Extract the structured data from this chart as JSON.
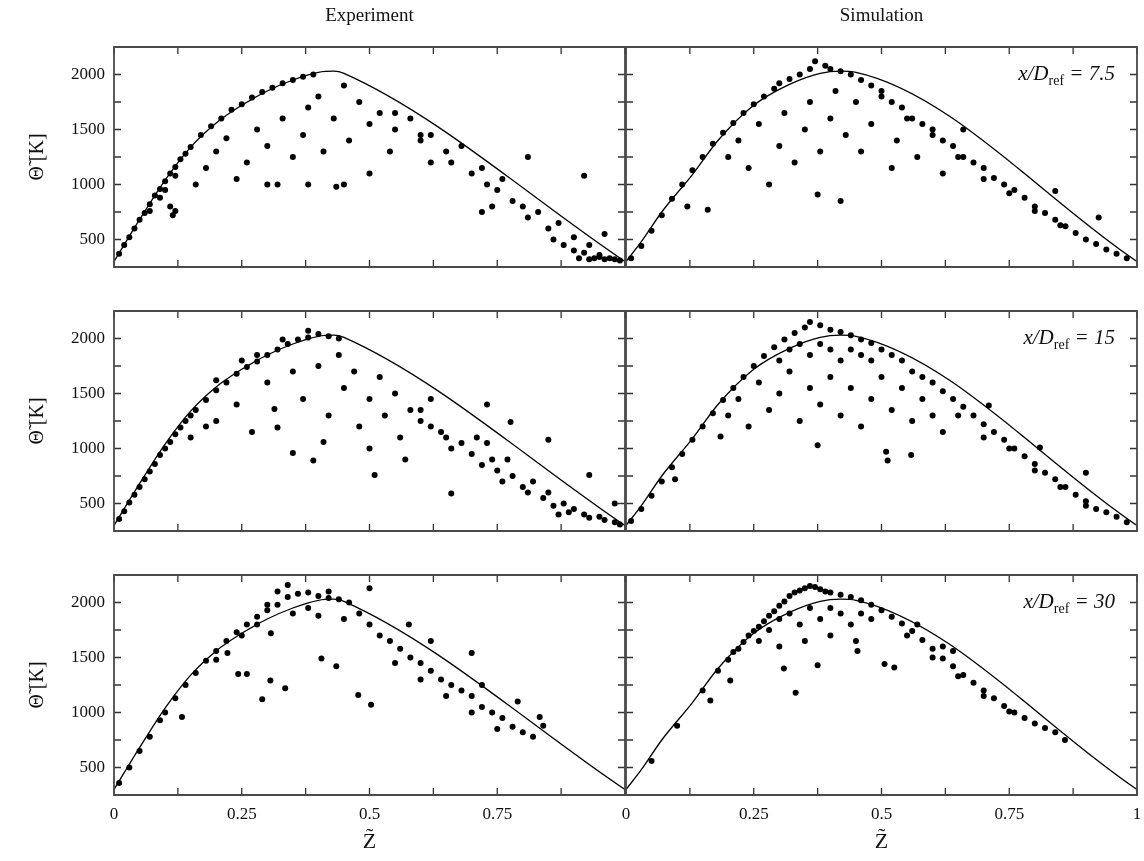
{
  "chart_data": [
    {
      "type": "scatter",
      "title": "Experiment",
      "ylabel": "Θ̃ [K]",
      "xlim": [
        0,
        1
      ],
      "ylim": [
        250,
        2250
      ],
      "xticks": [
        0,
        {
          "value": 0.125,
          "label": null
        },
        0.25,
        {
          "value": 0.375,
          "label": null
        },
        0.5,
        {
          "value": 0.625,
          "label": null
        },
        0.75,
        {
          "value": 0.875,
          "label": null
        },
        {
          "value": 1,
          "label": null
        }
      ],
      "yticks": [
        500,
        {
          "value": 750,
          "label": null
        },
        1000,
        {
          "value": 1250,
          "label": null
        },
        1500,
        {
          "value": 1750,
          "label": null
        },
        2000
      ],
      "tick_labels": "y",
      "marker": "circle",
      "series": [
        {
          "type": "scatter",
          "color": "#000000",
          "x": [
            0.01,
            0.02,
            0.03,
            0.04,
            0.05,
            0.06,
            0.07,
            0.08,
            0.09,
            0.1,
            0.11,
            0.12,
            0.13,
            0.14,
            0.15,
            0.17,
            0.19,
            0.21,
            0.23,
            0.25,
            0.27,
            0.29,
            0.31,
            0.33,
            0.35,
            0.37,
            0.39,
            0.07,
            0.09,
            0.1,
            0.12,
            0.11,
            0.115,
            0.12,
            0.16,
            0.18,
            0.2,
            0.22,
            0.24,
            0.26,
            0.28,
            0.3,
            0.32,
            0.33,
            0.35,
            0.37,
            0.38,
            0.4,
            0.41,
            0.43,
            0.45,
            0.46,
            0.48,
            0.5,
            0.5,
            0.52,
            0.54,
            0.55,
            0.58,
            0.6,
            0.62,
            0.45,
            0.3,
            0.38,
            0.435,
            0.55,
            0.6,
            0.62,
            0.65,
            0.66,
            0.68,
            0.7,
            0.72,
            0.73,
            0.75,
            0.76,
            0.78,
            0.8,
            0.81,
            0.83,
            0.85,
            0.86,
            0.87,
            0.88,
            0.9,
            0.9,
            0.92,
            0.93,
            0.94,
            0.95,
            0.96,
            0.97,
            0.98,
            0.99,
            0.93,
            0.95,
            0.91,
            0.81,
            0.92,
            0.96,
            0.72,
            0.74
          ],
          "values": [
            370,
            450,
            520,
            600,
            680,
            740,
            820,
            900,
            960,
            1030,
            1100,
            1160,
            1230,
            1280,
            1340,
            1450,
            1530,
            1600,
            1680,
            1730,
            1790,
            1840,
            1880,
            1920,
            1950,
            1980,
            2000,
            760,
            880,
            950,
            1080,
            800,
            720,
            760,
            1000,
            1150,
            1300,
            1420,
            1050,
            1200,
            1500,
            1350,
            1000,
            1600,
            1250,
            1450,
            1700,
            1800,
            1300,
            1600,
            1900,
            1400,
            1750,
            1100,
            1550,
            1650,
            1300,
            1500,
            1600,
            1450,
            1200,
            1000,
            1000,
            1000,
            980,
            1650,
            1400,
            1450,
            1300,
            1200,
            1350,
            1100,
            1150,
            1000,
            950,
            1050,
            850,
            800,
            700,
            750,
            600,
            500,
            650,
            450,
            520,
            400,
            380,
            450,
            330,
            340,
            320,
            330,
            320,
            310,
            320,
            360,
            330,
            1250,
            1080,
            550,
            750,
            800
          ]
        },
        {
          "type": "line",
          "color": "#000000",
          "marker": "none",
          "x": [
            0,
            0.05,
            0.1,
            0.15,
            0.2,
            0.25,
            0.3,
            0.35,
            0.4,
            0.43,
            0.45,
            1
          ],
          "values": [
            300,
            680,
            1040,
            1340,
            1560,
            1720,
            1850,
            1950,
            2020,
            2030,
            2010,
            300
          ]
        }
      ]
    },
    {
      "type": "scatter",
      "title": "Simulation",
      "xlim": [
        0,
        1
      ],
      "ylim": [
        250,
        2250
      ],
      "xticks": [
        0,
        {
          "value": 0.125,
          "label": null
        },
        0.25,
        {
          "value": 0.375,
          "label": null
        },
        0.5,
        {
          "value": 0.625,
          "label": null
        },
        0.75,
        {
          "value": 0.875,
          "label": null
        },
        1
      ],
      "yticks": [
        500,
        {
          "value": 750,
          "label": null
        },
        1000,
        {
          "value": 1250,
          "label": null
        },
        1500,
        {
          "value": 1750,
          "label": null
        },
        2000
      ],
      "tick_labels": false,
      "marker": "circle",
      "annotations": [
        "x/D$_{ref}$ = 7.5"
      ],
      "series": [
        {
          "type": "scatter",
          "color": "#000000",
          "x": [
            0.01,
            0.03,
            0.05,
            0.07,
            0.09,
            0.11,
            0.13,
            0.15,
            0.17,
            0.19,
            0.21,
            0.23,
            0.25,
            0.27,
            0.29,
            0.3,
            0.32,
            0.34,
            0.36,
            0.37,
            0.39,
            0.4,
            0.42,
            0.44,
            0.12,
            0.16,
            0.2,
            0.22,
            0.24,
            0.26,
            0.28,
            0.3,
            0.31,
            0.33,
            0.35,
            0.36,
            0.375,
            0.38,
            0.4,
            0.41,
            0.42,
            0.43,
            0.45,
            0.46,
            0.48,
            0.5,
            0.52,
            0.53,
            0.55,
            0.57,
            0.6,
            0.62,
            0.65,
            0.46,
            0.48,
            0.5,
            0.52,
            0.54,
            0.56,
            0.58,
            0.6,
            0.62,
            0.64,
            0.66,
            0.68,
            0.7,
            0.72,
            0.74,
            0.76,
            0.78,
            0.8,
            0.82,
            0.84,
            0.86,
            0.88,
            0.9,
            0.92,
            0.94,
            0.96,
            0.98,
            0.7,
            0.75,
            0.8,
            0.85,
            0.66,
            0.84,
            0.925
          ],
          "values": [
            330,
            440,
            580,
            720,
            870,
            1000,
            1130,
            1250,
            1370,
            1470,
            1560,
            1650,
            1730,
            1800,
            1870,
            1920,
            1960,
            2000,
            2050,
            2120,
            2080,
            2050,
            2030,
            2000,
            800,
            770,
            1250,
            1400,
            1150,
            1550,
            1000,
            1350,
            1650,
            1200,
            1500,
            1750,
            910,
            1300,
            1600,
            1850,
            850,
            1450,
            1750,
            1300,
            1550,
            1800,
            1150,
            1400,
            1600,
            1250,
            1500,
            1100,
            1250,
            1950,
            1900,
            1850,
            1750,
            1700,
            1600,
            1550,
            1450,
            1400,
            1350,
            1250,
            1200,
            1150,
            1060,
            1000,
            950,
            880,
            800,
            740,
            680,
            620,
            560,
            500,
            460,
            410,
            370,
            330,
            1050,
            920,
            760,
            630,
            1500,
            940,
            700
          ]
        },
        {
          "type": "line",
          "color": "#000000",
          "marker": "none",
          "x": [
            0,
            0.03,
            0.07,
            0.13,
            0.18,
            0.25,
            0.32,
            0.38,
            0.42,
            0.45,
            1
          ],
          "values": [
            300,
            480,
            750,
            1090,
            1400,
            1720,
            1910,
            2010,
            2030,
            2020,
            300
          ]
        }
      ]
    },
    {
      "type": "scatter",
      "ylabel": "Θ̃ [K]",
      "xlim": [
        0,
        1
      ],
      "ylim": [
        250,
        2250
      ],
      "xticks": [
        0,
        {
          "value": 0.125,
          "label": null
        },
        0.25,
        {
          "value": 0.375,
          "label": null
        },
        0.5,
        {
          "value": 0.625,
          "label": null
        },
        0.75,
        {
          "value": 0.875,
          "label": null
        },
        {
          "value": 1,
          "label": null
        }
      ],
      "yticks": [
        500,
        {
          "value": 750,
          "label": null
        },
        1000,
        {
          "value": 1250,
          "label": null
        },
        1500,
        {
          "value": 1750,
          "label": null
        },
        2000
      ],
      "tick_labels": "y",
      "marker": "circle",
      "series": [
        {
          "type": "scatter",
          "color": "#000000",
          "x": [
            0.01,
            0.02,
            0.03,
            0.04,
            0.05,
            0.06,
            0.07,
            0.08,
            0.09,
            0.1,
            0.11,
            0.12,
            0.13,
            0.14,
            0.15,
            0.16,
            0.18,
            0.2,
            0.22,
            0.24,
            0.26,
            0.28,
            0.3,
            0.32,
            0.34,
            0.36,
            0.38,
            0.4,
            0.42,
            0.44,
            0.2,
            0.25,
            0.28,
            0.33,
            0.38,
            0.15,
            0.18,
            0.2,
            0.32,
            0.314,
            0.39,
            0.41,
            0.35,
            0.24,
            0.27,
            0.3,
            0.35,
            0.37,
            0.4,
            0.42,
            0.44,
            0.45,
            0.47,
            0.48,
            0.5,
            0.52,
            0.53,
            0.55,
            0.56,
            0.58,
            0.6,
            0.62,
            0.65,
            0.5,
            0.57,
            0.51,
            0.66,
            0.6,
            0.62,
            0.64,
            0.66,
            0.68,
            0.7,
            0.71,
            0.72,
            0.74,
            0.75,
            0.76,
            0.78,
            0.8,
            0.81,
            0.82,
            0.84,
            0.85,
            0.86,
            0.88,
            0.89,
            0.9,
            0.92,
            0.93,
            0.95,
            0.96,
            0.98,
            0.99,
            0.87,
            0.77,
            0.73,
            0.73,
            0.776,
            0.85,
            0.93,
            0.98
          ],
          "values": [
            360,
            430,
            510,
            580,
            650,
            720,
            790,
            860,
            940,
            1000,
            1060,
            1130,
            1190,
            1250,
            1300,
            1350,
            1440,
            1530,
            1600,
            1680,
            1740,
            1790,
            1850,
            1900,
            1950,
            1990,
            2010,
            2040,
            2020,
            2000,
            1620,
            1800,
            1850,
            1990,
            2070,
            1100,
            1200,
            1250,
            1190,
            1360,
            890,
            1060,
            960,
            1400,
            1150,
            1600,
            1700,
            1450,
            1750,
            1300,
            1850,
            1550,
            1700,
            1200,
            1450,
            1650,
            1300,
            1500,
            1100,
            1350,
            1250,
            1450,
            1100,
            1000,
            900,
            760,
            590,
            1350,
            1200,
            1150,
            1000,
            1050,
            950,
            1100,
            850,
            900,
            800,
            700,
            750,
            650,
            600,
            700,
            550,
            600,
            480,
            500,
            420,
            450,
            400,
            370,
            380,
            350,
            330,
            310,
            400,
            900,
            1050,
            1400,
            1240,
            1080,
            760,
            500
          ]
        },
        {
          "type": "line",
          "color": "#000000",
          "marker": "none",
          "x": [
            0,
            0.05,
            0.1,
            0.15,
            0.2,
            0.25,
            0.3,
            0.35,
            0.4,
            0.43,
            0.45,
            1
          ],
          "values": [
            300,
            680,
            1040,
            1340,
            1560,
            1720,
            1850,
            1950,
            2020,
            2030,
            2010,
            300
          ]
        }
      ]
    },
    {
      "type": "scatter",
      "xlim": [
        0,
        1
      ],
      "ylim": [
        250,
        2250
      ],
      "xticks": [
        0,
        {
          "value": 0.125,
          "label": null
        },
        0.25,
        {
          "value": 0.375,
          "label": null
        },
        0.5,
        {
          "value": 0.625,
          "label": null
        },
        0.75,
        {
          "value": 0.875,
          "label": null
        },
        1
      ],
      "yticks": [
        500,
        {
          "value": 750,
          "label": null
        },
        1000,
        {
          "value": 1250,
          "label": null
        },
        1500,
        {
          "value": 1750,
          "label": null
        },
        2000
      ],
      "tick_labels": false,
      "marker": "circle",
      "annotations": [
        "x/D$_{ref}$ = 15"
      ],
      "series": [
        {
          "type": "scatter",
          "color": "#000000",
          "x": [
            0.01,
            0.03,
            0.05,
            0.07,
            0.09,
            0.11,
            0.13,
            0.15,
            0.17,
            0.19,
            0.21,
            0.23,
            0.25,
            0.27,
            0.29,
            0.31,
            0.33,
            0.35,
            0.36,
            0.38,
            0.4,
            0.42,
            0.44,
            0.46,
            0.48,
            0.3,
            0.32,
            0.34,
            0.36,
            0.38,
            0.4,
            0.42,
            0.44,
            0.46,
            0.48,
            0.5,
            0.52,
            0.54,
            0.096,
            0.185,
            0.2,
            0.22,
            0.24,
            0.26,
            0.28,
            0.3,
            0.32,
            0.34,
            0.36,
            0.375,
            0.38,
            0.4,
            0.42,
            0.44,
            0.46,
            0.48,
            0.5,
            0.509,
            0.512,
            0.52,
            0.54,
            0.558,
            0.56,
            0.58,
            0.6,
            0.62,
            0.56,
            0.58,
            0.6,
            0.62,
            0.64,
            0.66,
            0.68,
            0.7,
            0.72,
            0.74,
            0.76,
            0.78,
            0.8,
            0.82,
            0.84,
            0.86,
            0.88,
            0.9,
            0.92,
            0.94,
            0.96,
            0.98,
            0.65,
            0.7,
            0.75,
            0.8,
            0.85,
            0.9,
            0.71,
            0.9,
            0.81
          ],
          "values": [
            340,
            450,
            570,
            700,
            830,
            950,
            1080,
            1200,
            1320,
            1440,
            1550,
            1650,
            1750,
            1840,
            1920,
            1990,
            2050,
            2100,
            2150,
            2120,
            2080,
            2060,
            2030,
            1990,
            1960,
            1800,
            1900,
            1950,
            1850,
            1950,
            1900,
            1800,
            1900,
            1850,
            1800,
            1900,
            1850,
            1800,
            720,
            1110,
            1300,
            1450,
            1200,
            1600,
            1350,
            1500,
            1700,
            1250,
            1550,
            1030,
            1400,
            1650,
            1300,
            1550,
            1200,
            1450,
            1650,
            970,
            890,
            1350,
            1550,
            940,
            1250,
            1450,
            1300,
            1150,
            1700,
            1650,
            1600,
            1520,
            1450,
            1380,
            1300,
            1220,
            1150,
            1080,
            1000,
            930,
            860,
            780,
            720,
            650,
            580,
            520,
            450,
            420,
            380,
            330,
            1300,
            1100,
            1000,
            800,
            650,
            480,
            1390,
            780,
            1010
          ]
        },
        {
          "type": "line",
          "color": "#000000",
          "marker": "none",
          "x": [
            0,
            0.03,
            0.07,
            0.13,
            0.18,
            0.25,
            0.32,
            0.38,
            0.42,
            0.45,
            1
          ],
          "values": [
            300,
            480,
            750,
            1090,
            1400,
            1720,
            1910,
            2010,
            2030,
            2020,
            300
          ]
        }
      ]
    },
    {
      "type": "scatter",
      "xlabel": "Z̃",
      "ylabel": "Θ̃ [K]",
      "xlim": [
        0,
        1
      ],
      "ylim": [
        250,
        2250
      ],
      "xticks": [
        0,
        {
          "value": 0.125,
          "label": null
        },
        0.25,
        {
          "value": 0.375,
          "label": null
        },
        0.5,
        {
          "value": 0.625,
          "label": null
        },
        0.75,
        {
          "value": 0.875,
          "label": null
        },
        {
          "value": 1,
          "label": null
        }
      ],
      "yticks": [
        500,
        {
          "value": 750,
          "label": null
        },
        1000,
        {
          "value": 1250,
          "label": null
        },
        1500,
        {
          "value": 1750,
          "label": null
        },
        2000
      ],
      "marker": "circle",
      "series": [
        {
          "type": "scatter",
          "color": "#000000",
          "x": [
            0.01,
            0.03,
            0.05,
            0.07,
            0.09,
            0.1,
            0.12,
            0.14,
            0.16,
            0.18,
            0.2,
            0.22,
            0.24,
            0.26,
            0.28,
            0.3,
            0.32,
            0.34,
            0.36,
            0.38,
            0.4,
            0.42,
            0.44,
            0.46,
            0.2,
            0.25,
            0.28,
            0.3,
            0.32,
            0.34,
            0.35,
            0.38,
            0.4,
            0.42,
            0.45,
            0.29,
            0.335,
            0.306,
            0.406,
            0.435,
            0.478,
            0.503,
            0.243,
            0.26,
            0.222,
            0.307,
            0.133,
            0.48,
            0.5,
            0.52,
            0.54,
            0.56,
            0.58,
            0.6,
            0.62,
            0.64,
            0.66,
            0.68,
            0.7,
            0.72,
            0.74,
            0.76,
            0.78,
            0.8,
            0.82,
            0.55,
            0.6,
            0.65,
            0.7,
            0.75,
            0.62,
            0.72,
            0.79,
            0.84,
            0.833,
            0.7,
            0.577,
            0.5
          ],
          "values": [
            360,
            500,
            650,
            780,
            930,
            1000,
            1130,
            1250,
            1360,
            1470,
            1560,
            1650,
            1730,
            1800,
            1870,
            1930,
            1980,
            2050,
            2080,
            2090,
            2060,
            2040,
            2030,
            2000,
            1480,
            1700,
            1800,
            1980,
            2100,
            2160,
            1900,
            1950,
            1880,
            2100,
            1850,
            1120,
            1220,
            1290,
            1490,
            1420,
            1160,
            1070,
            1350,
            1350,
            1540,
            1720,
            960,
            1900,
            1800,
            1700,
            1650,
            1580,
            1500,
            1450,
            1380,
            1300,
            1250,
            1200,
            1150,
            1050,
            1000,
            950,
            870,
            820,
            780,
            1450,
            1300,
            1150,
            1000,
            850,
            1650,
            1250,
            1100,
            880,
            960,
            1540,
            1800,
            2130
          ]
        },
        {
          "type": "line",
          "color": "#000000",
          "marker": "none",
          "x": [
            0,
            0.05,
            0.1,
            0.15,
            0.2,
            0.25,
            0.3,
            0.35,
            0.4,
            0.43,
            0.45,
            1
          ],
          "values": [
            300,
            680,
            1040,
            1340,
            1560,
            1720,
            1850,
            1950,
            2020,
            2030,
            2010,
            300
          ]
        }
      ]
    },
    {
      "type": "scatter",
      "xlabel": "Z̃",
      "xlim": [
        0,
        1
      ],
      "ylim": [
        250,
        2250
      ],
      "xticks": [
        0,
        {
          "value": 0.125,
          "label": null
        },
        0.25,
        {
          "value": 0.375,
          "label": null
        },
        0.5,
        {
          "value": 0.625,
          "label": null
        },
        0.75,
        {
          "value": 0.875,
          "label": null
        },
        1
      ],
      "yticks": [
        500,
        {
          "value": 750,
          "label": null
        },
        1000,
        {
          "value": 1250,
          "label": null
        },
        1500,
        {
          "value": 1750,
          "label": null
        },
        2000
      ],
      "tick_labels": "x",
      "marker": "circle",
      "annotations": [
        "x/D$_{ref}$ = 30"
      ],
      "series": [
        {
          "type": "scatter",
          "color": "#000000",
          "x": [
            0.05,
            0.1,
            0.15,
            0.18,
            0.2,
            0.21,
            0.22,
            0.23,
            0.24,
            0.25,
            0.26,
            0.27,
            0.28,
            0.29,
            0.3,
            0.31,
            0.32,
            0.33,
            0.34,
            0.35,
            0.36,
            0.37,
            0.38,
            0.39,
            0.4,
            0.42,
            0.44,
            0.46,
            0.48,
            0.26,
            0.28,
            0.3,
            0.32,
            0.34,
            0.36,
            0.38,
            0.4,
            0.42,
            0.44,
            0.46,
            0.48,
            0.3,
            0.35,
            0.4,
            0.45,
            0.5,
            0.52,
            0.54,
            0.56,
            0.58,
            0.6,
            0.62,
            0.64,
            0.66,
            0.68,
            0.7,
            0.72,
            0.74,
            0.76,
            0.78,
            0.8,
            0.82,
            0.84,
            0.55,
            0.6,
            0.65,
            0.7,
            0.75,
            0.62,
            0.57,
            0.165,
            0.204,
            0.309,
            0.332,
            0.375,
            0.453,
            0.506,
            0.525,
            0.859,
            0.64
          ],
          "values": [
            560,
            880,
            1200,
            1380,
            1480,
            1550,
            1580,
            1640,
            1700,
            1740,
            1780,
            1830,
            1880,
            1920,
            1970,
            2010,
            2060,
            2090,
            2110,
            2130,
            2150,
            2140,
            2120,
            2100,
            2090,
            2070,
            2050,
            2020,
            1980,
            1650,
            1750,
            1850,
            1900,
            1800,
            1950,
            1850,
            1950,
            1900,
            1800,
            1900,
            1850,
            1600,
            1650,
            1700,
            1650,
            1930,
            1870,
            1810,
            1740,
            1660,
            1580,
            1490,
            1420,
            1340,
            1270,
            1200,
            1130,
            1060,
            1000,
            950,
            900,
            860,
            820,
            1700,
            1500,
            1330,
            1150,
            1010,
            1600,
            1800,
            1110,
            1290,
            1400,
            1180,
            1430,
            1560,
            1440,
            1410,
            750,
            1560
          ]
        },
        {
          "type": "line",
          "color": "#000000",
          "marker": "none",
          "x": [
            0,
            0.03,
            0.07,
            0.13,
            0.18,
            0.25,
            0.32,
            0.38,
            0.42,
            0.45,
            1
          ],
          "values": [
            300,
            480,
            750,
            1090,
            1400,
            1720,
            1910,
            2010,
            2030,
            2020,
            300
          ]
        }
      ]
    }
  ]
}
